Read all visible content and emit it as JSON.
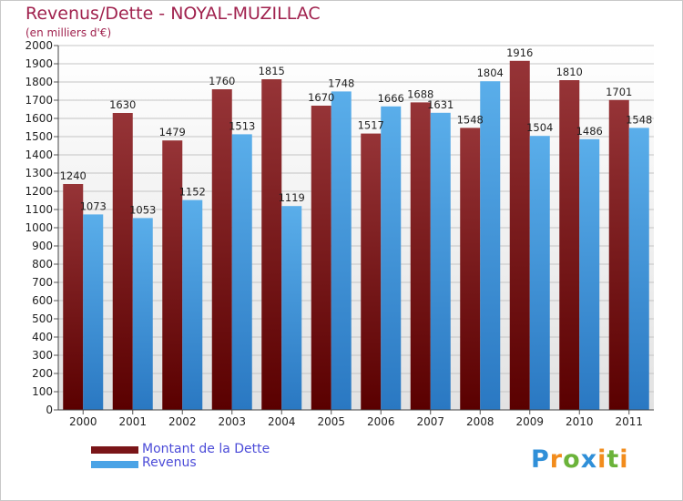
{
  "chart_data": {
    "type": "bar",
    "title": "Revenus/Dette - NOYAL-MUZILLAC",
    "subtitle": "(en milliers d'€)",
    "categories": [
      "2000",
      "2001",
      "2002",
      "2003",
      "2004",
      "2005",
      "2006",
      "2007",
      "2008",
      "2009",
      "2010",
      "2011"
    ],
    "series": [
      {
        "name": "Montant de la Dette",
        "color": "#7a1518",
        "values": [
          1240,
          1630,
          1479,
          1760,
          1815,
          1670,
          1517,
          1688,
          1548,
          1916,
          1810,
          1701
        ]
      },
      {
        "name": "Revenus",
        "color": "#4aa3e6",
        "values": [
          1073,
          1053,
          1152,
          1513,
          1119,
          1748,
          1666,
          1631,
          1804,
          1504,
          1486,
          1548
        ]
      }
    ],
    "ylim": [
      0,
      2000
    ],
    "ytick_step": 100,
    "grid": true,
    "legend_position": "bottom-left"
  },
  "branding": {
    "logo_letters": [
      "P",
      "r",
      "o",
      "x",
      "i",
      "t",
      "i"
    ],
    "logo_colors": [
      "#2f8fd8",
      "#f28c1c",
      "#6bb33a",
      "#2f8fd8",
      "#f28c1c",
      "#6bb33a",
      "#f28c1c"
    ]
  }
}
